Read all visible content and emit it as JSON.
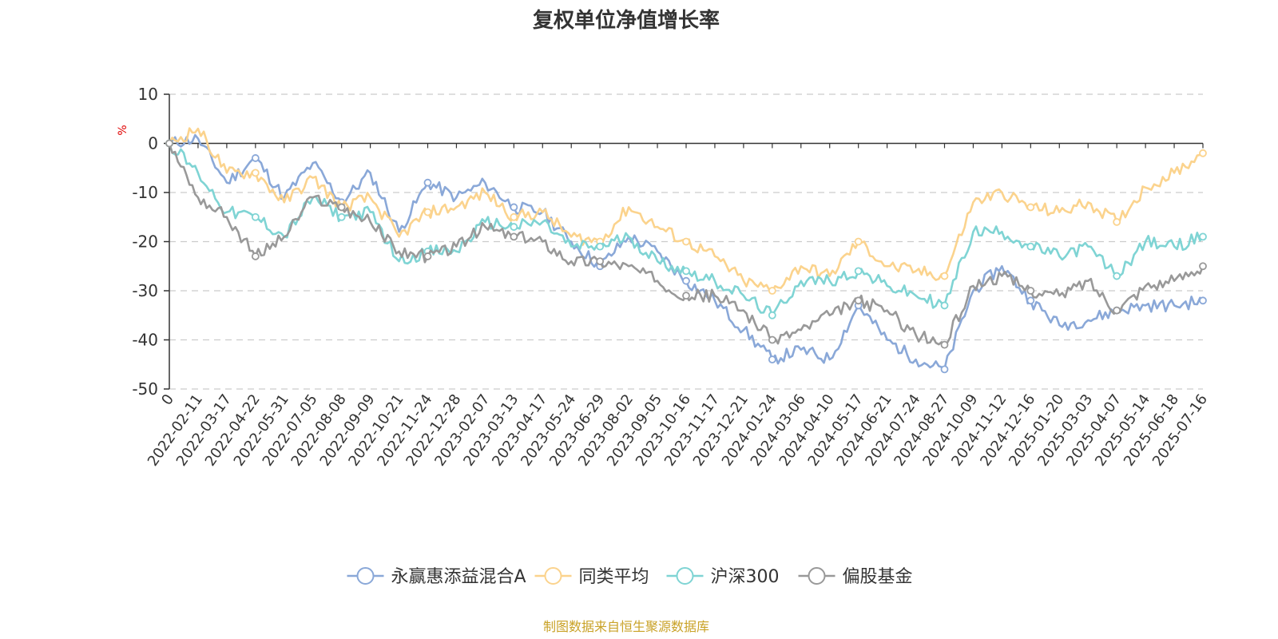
{
  "chart_data": {
    "type": "line",
    "title": "复权单位净值增长率",
    "ylabel": "%",
    "ylim": [
      -50,
      10
    ],
    "y_ticks": [
      "10",
      "0",
      "-10",
      "-20",
      "-30",
      "-40",
      "-50"
    ],
    "grid": true,
    "legend_position": "bottom",
    "source": "制图数据来自恒生聚源数据库",
    "x": [
      "0",
      "2022-02-11",
      "2022-03-17",
      "2022-04-22",
      "2022-05-31",
      "2022-07-05",
      "2022-08-08",
      "2022-09-09",
      "2022-10-21",
      "2022-11-24",
      "2022-12-28",
      "2023-02-07",
      "2023-03-13",
      "2023-04-17",
      "2023-05-24",
      "2023-06-29",
      "2023-08-02",
      "2023-09-05",
      "2023-10-16",
      "2023-11-17",
      "2023-12-21",
      "2024-01-24",
      "2024-03-06",
      "2024-04-10",
      "2024-05-17",
      "2024-06-21",
      "2024-07-24",
      "2024-08-27",
      "2024-10-09",
      "2024-11-12",
      "2024-12-16",
      "2025-01-20",
      "2025-03-03",
      "2025-04-07",
      "2025-05-14",
      "2025-06-18",
      "2025-07-16"
    ],
    "series": [
      {
        "name": "永赢惠添益混合A",
        "color": "#8aa8d8",
        "values": [
          0,
          1,
          -8,
          -3,
          -11,
          -4,
          -12,
          -6,
          -18,
          -8,
          -11,
          -8,
          -13,
          -14,
          -20,
          -25,
          -19,
          -22,
          -28,
          -32,
          -38,
          -44,
          -42,
          -44,
          -33,
          -40,
          -44,
          -46,
          -30,
          -25,
          -32,
          -37,
          -36,
          -34,
          -33,
          -33,
          -32
        ]
      },
      {
        "name": "同类平均",
        "color": "#fbd38d",
        "values": [
          0,
          3,
          -6,
          -6,
          -12,
          -7,
          -13,
          -11,
          -19,
          -14,
          -13,
          -10,
          -15,
          -14,
          -19,
          -20,
          -13,
          -17,
          -20,
          -23,
          -28,
          -30,
          -25,
          -27,
          -20,
          -25,
          -26,
          -27,
          -12,
          -10,
          -13,
          -14,
          -12,
          -16,
          -9,
          -6,
          -2
        ]
      },
      {
        "name": "沪深300",
        "color": "#7fd4d4",
        "values": [
          0,
          -6,
          -14,
          -15,
          -19,
          -11,
          -15,
          -14,
          -24,
          -22,
          -22,
          -16,
          -17,
          -16,
          -21,
          -21,
          -19,
          -24,
          -26,
          -28,
          -31,
          -35,
          -28,
          -28,
          -26,
          -29,
          -31,
          -33,
          -18,
          -18,
          -21,
          -23,
          -21,
          -27,
          -20,
          -21,
          -19
        ]
      },
      {
        "name": "偏股基金",
        "color": "#999999",
        "values": [
          0,
          -11,
          -15,
          -23,
          -19,
          -11,
          -13,
          -16,
          -22,
          -23,
          -21,
          -17,
          -19,
          -20,
          -24,
          -24,
          -25,
          -28,
          -31,
          -31,
          -34,
          -40,
          -38,
          -35,
          -32,
          -34,
          -39,
          -41,
          -29,
          -27,
          -30,
          -31,
          -28,
          -34,
          -29,
          -28,
          -25
        ]
      }
    ]
  }
}
